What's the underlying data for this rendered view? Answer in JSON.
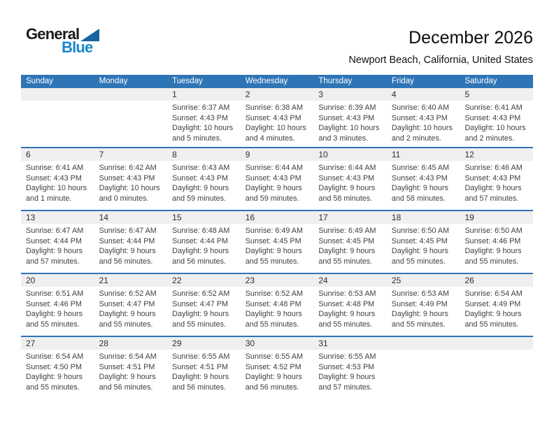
{
  "logo": {
    "general": "General",
    "blue": "Blue"
  },
  "title": "December 2026",
  "subtitle": "Newport Beach, California, United States",
  "weekday_headers": [
    "Sunday",
    "Monday",
    "Tuesday",
    "Wednesday",
    "Thursday",
    "Friday",
    "Saturday"
  ],
  "labels": {
    "sunrise": "Sunrise:",
    "sunset": "Sunset:",
    "daylight": "Daylight:"
  },
  "colors": {
    "header_bg": "#2E75B6",
    "header_text": "#FFFFFF",
    "separator": "#2E75B6",
    "band_bg": "#EFEFEF",
    "logo_blue": "#1787CB",
    "logo_triangle": "#15669F"
  },
  "weeks": [
    [
      null,
      null,
      {
        "day": "1",
        "sunrise": "6:37 AM",
        "sunset": "4:43 PM",
        "daylight": "10 hours and 5 minutes."
      },
      {
        "day": "2",
        "sunrise": "6:38 AM",
        "sunset": "4:43 PM",
        "daylight": "10 hours and 4 minutes."
      },
      {
        "day": "3",
        "sunrise": "6:39 AM",
        "sunset": "4:43 PM",
        "daylight": "10 hours and 3 minutes."
      },
      {
        "day": "4",
        "sunrise": "6:40 AM",
        "sunset": "4:43 PM",
        "daylight": "10 hours and 2 minutes."
      },
      {
        "day": "5",
        "sunrise": "6:41 AM",
        "sunset": "4:43 PM",
        "daylight": "10 hours and 2 minutes."
      }
    ],
    [
      {
        "day": "6",
        "sunrise": "6:41 AM",
        "sunset": "4:43 PM",
        "daylight": "10 hours and 1 minute."
      },
      {
        "day": "7",
        "sunrise": "6:42 AM",
        "sunset": "4:43 PM",
        "daylight": "10 hours and 0 minutes."
      },
      {
        "day": "8",
        "sunrise": "6:43 AM",
        "sunset": "4:43 PM",
        "daylight": "9 hours and 59 minutes."
      },
      {
        "day": "9",
        "sunrise": "6:44 AM",
        "sunset": "4:43 PM",
        "daylight": "9 hours and 59 minutes."
      },
      {
        "day": "10",
        "sunrise": "6:44 AM",
        "sunset": "4:43 PM",
        "daylight": "9 hours and 58 minutes."
      },
      {
        "day": "11",
        "sunrise": "6:45 AM",
        "sunset": "4:43 PM",
        "daylight": "9 hours and 58 minutes."
      },
      {
        "day": "12",
        "sunrise": "6:46 AM",
        "sunset": "4:43 PM",
        "daylight": "9 hours and 57 minutes."
      }
    ],
    [
      {
        "day": "13",
        "sunrise": "6:47 AM",
        "sunset": "4:44 PM",
        "daylight": "9 hours and 57 minutes."
      },
      {
        "day": "14",
        "sunrise": "6:47 AM",
        "sunset": "4:44 PM",
        "daylight": "9 hours and 56 minutes."
      },
      {
        "day": "15",
        "sunrise": "6:48 AM",
        "sunset": "4:44 PM",
        "daylight": "9 hours and 56 minutes."
      },
      {
        "day": "16",
        "sunrise": "6:49 AM",
        "sunset": "4:45 PM",
        "daylight": "9 hours and 55 minutes."
      },
      {
        "day": "17",
        "sunrise": "6:49 AM",
        "sunset": "4:45 PM",
        "daylight": "9 hours and 55 minutes."
      },
      {
        "day": "18",
        "sunrise": "6:50 AM",
        "sunset": "4:45 PM",
        "daylight": "9 hours and 55 minutes."
      },
      {
        "day": "19",
        "sunrise": "6:50 AM",
        "sunset": "4:46 PM",
        "daylight": "9 hours and 55 minutes."
      }
    ],
    [
      {
        "day": "20",
        "sunrise": "6:51 AM",
        "sunset": "4:46 PM",
        "daylight": "9 hours and 55 minutes."
      },
      {
        "day": "21",
        "sunrise": "6:52 AM",
        "sunset": "4:47 PM",
        "daylight": "9 hours and 55 minutes."
      },
      {
        "day": "22",
        "sunrise": "6:52 AM",
        "sunset": "4:47 PM",
        "daylight": "9 hours and 55 minutes."
      },
      {
        "day": "23",
        "sunrise": "6:52 AM",
        "sunset": "4:48 PM",
        "daylight": "9 hours and 55 minutes."
      },
      {
        "day": "24",
        "sunrise": "6:53 AM",
        "sunset": "4:48 PM",
        "daylight": "9 hours and 55 minutes."
      },
      {
        "day": "25",
        "sunrise": "6:53 AM",
        "sunset": "4:49 PM",
        "daylight": "9 hours and 55 minutes."
      },
      {
        "day": "26",
        "sunrise": "6:54 AM",
        "sunset": "4:49 PM",
        "daylight": "9 hours and 55 minutes."
      }
    ],
    [
      {
        "day": "27",
        "sunrise": "6:54 AM",
        "sunset": "4:50 PM",
        "daylight": "9 hours and 55 minutes."
      },
      {
        "day": "28",
        "sunrise": "6:54 AM",
        "sunset": "4:51 PM",
        "daylight": "9 hours and 56 minutes."
      },
      {
        "day": "29",
        "sunrise": "6:55 AM",
        "sunset": "4:51 PM",
        "daylight": "9 hours and 56 minutes."
      },
      {
        "day": "30",
        "sunrise": "6:55 AM",
        "sunset": "4:52 PM",
        "daylight": "9 hours and 56 minutes."
      },
      {
        "day": "31",
        "sunrise": "6:55 AM",
        "sunset": "4:53 PM",
        "daylight": "9 hours and 57 minutes."
      },
      null,
      null
    ]
  ]
}
